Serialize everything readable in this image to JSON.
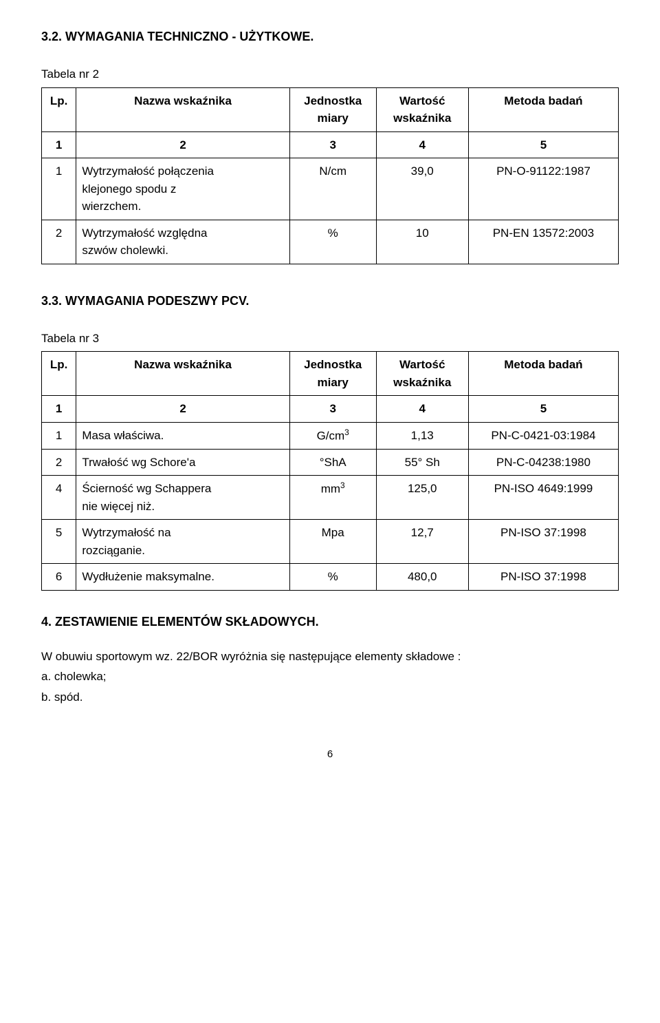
{
  "section32": {
    "title": "3.2. WYMAGANIA TECHNICZNO - UŻYTKOWE.",
    "table_caption": "Tabela nr 2",
    "header": {
      "c1": "Lp.",
      "c2": "Nazwa wskaźnika",
      "c3a": "Jednostka",
      "c3b": "miary",
      "c4a": "Wartość",
      "c4b": "wskaźnika",
      "c5": "Metoda badań"
    },
    "numrow": {
      "c1": "1",
      "c2": "2",
      "c3": "3",
      "c4": "4",
      "c5": "5"
    },
    "rows": [
      {
        "lp": "1",
        "name1": "Wytrzymałość połączenia",
        "name2": "klejonego spodu z",
        "name3": "wierzchem.",
        "unit": "N/cm",
        "val": "39,0",
        "method": "PN-O-91122:1987"
      },
      {
        "lp": "2",
        "name1": "Wytrzymałość względna",
        "name2": "szwów cholewki.",
        "unit": "%",
        "val": "10",
        "method": "PN-EN 13572:2003"
      }
    ]
  },
  "section33": {
    "title": "3.3. WYMAGANIA PODESZWY PCV.",
    "table_caption": "Tabela nr 3",
    "header": {
      "c1": "Lp.",
      "c2": "Nazwa wskaźnika",
      "c3a": "Jednostka",
      "c3b": "miary",
      "c4a": "Wartość",
      "c4b": "wskaźnika",
      "c5": "Metoda badań"
    },
    "numrow": {
      "c1": "1",
      "c2": "2",
      "c3": "3",
      "c4": "4",
      "c5": "5"
    },
    "rows": [
      {
        "lp": "1",
        "name": "Masa właściwa.",
        "unit_html": "G/cm<sup>3</sup>",
        "val": "1,13",
        "method": "PN-C-0421-03:1984"
      },
      {
        "lp": "2",
        "name": "Trwałość wg Schore'a",
        "unit_html": "°ShA",
        "val": "55° Sh",
        "method": "PN-C-04238:1980"
      },
      {
        "lp": "4",
        "name1": "Ścierność wg Schappera",
        "name2": "nie więcej niż.",
        "unit_html": "mm<sup>3</sup>",
        "val": "125,0",
        "method": "PN-ISO 4649:1999"
      },
      {
        "lp": "5",
        "name1": "Wytrzymałość na",
        "name2": "rozciąganie.",
        "unit_html": "Mpa",
        "val": "12,7",
        "method": "PN-ISO 37:1998"
      },
      {
        "lp": "6",
        "name": "Wydłużenie maksymalne.",
        "unit_html": "%",
        "val": "480,0",
        "method": "PN-ISO 37:1998"
      }
    ]
  },
  "section4": {
    "title": "4. ZESTAWIENIE ELEMENTÓW SKŁADOWYCH.",
    "line1": "W obuwiu sportowym wz. 22/BOR wyróżnia się następujące elementy składowe :",
    "item_a": "a. cholewka;",
    "item_b": "b. spód."
  },
  "page_number": "6"
}
